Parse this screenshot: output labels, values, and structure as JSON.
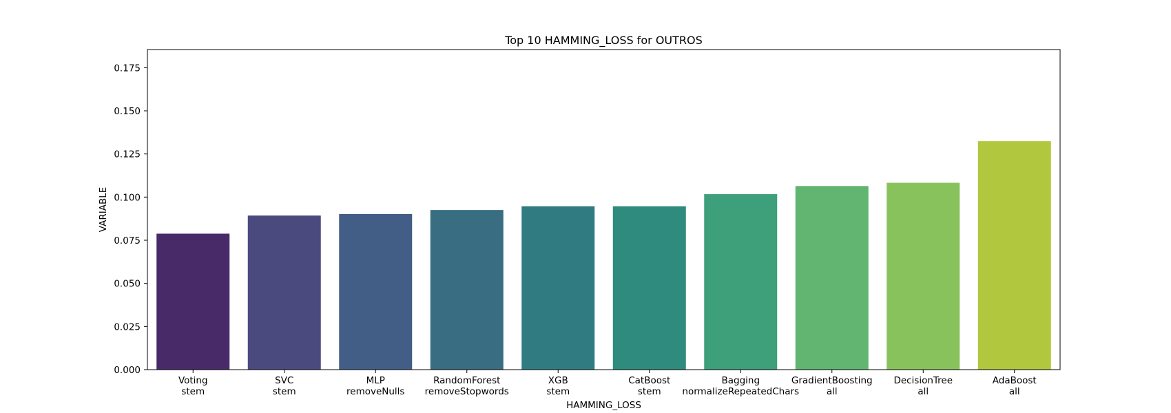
{
  "chart_data": {
    "type": "bar",
    "title": "Top 10 HAMMING_LOSS for OUTROS",
    "xlabel": "HAMMING_LOSS",
    "ylabel": "VARIABLE",
    "ylim": [
      0,
      0.1855
    ],
    "yticks": [
      "0.000",
      "0.025",
      "0.050",
      "0.075",
      "0.100",
      "0.125",
      "0.150",
      "0.175"
    ],
    "ytick_values": [
      0,
      0.025,
      0.05,
      0.075,
      0.1,
      0.125,
      0.15,
      0.175
    ],
    "grid": false,
    "categories": [
      [
        "Voting",
        "stem"
      ],
      [
        "SVC",
        "stem"
      ],
      [
        "MLP",
        "removeNulls"
      ],
      [
        "RandomForest",
        "removeStopwords"
      ],
      [
        "XGB",
        "stem"
      ],
      [
        "CatBoost",
        "stem"
      ],
      [
        "Bagging",
        "normalizeRepeatedChars"
      ],
      [
        "GradientBoosting",
        "all"
      ],
      [
        "DecisionTree",
        "all"
      ],
      [
        "AdaBoost",
        "all"
      ]
    ],
    "values": [
      0.0788,
      0.0893,
      0.0902,
      0.0925,
      0.0947,
      0.0947,
      0.1017,
      0.1064,
      0.1083,
      0.1324
    ],
    "colors": [
      "#482a68",
      "#4a4a7f",
      "#435e86",
      "#386d82",
      "#307b81",
      "#2e8b7e",
      "#3da07a",
      "#62b570",
      "#88c25d",
      "#b1c73d"
    ]
  }
}
